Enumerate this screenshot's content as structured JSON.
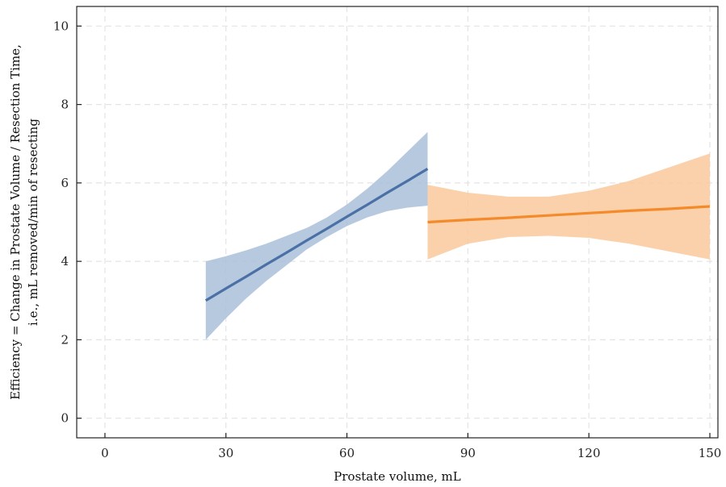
{
  "chart_data": {
    "type": "line",
    "xlabel": "Prostate volume, mL",
    "ylabel": [
      "Efficiency = Change in Prostate Volume / Resection Time,",
      "i.e., mL removed/min of resecting"
    ],
    "xlim": [
      -7,
      152
    ],
    "ylim": [
      -0.5,
      10.5
    ],
    "xticks": [
      0,
      30,
      60,
      90,
      120,
      150
    ],
    "yticks": [
      0,
      2,
      4,
      6,
      8,
      10
    ],
    "grid": true,
    "series": [
      {
        "color": "#4a70a6",
        "band_color": "#a9bfd9",
        "x": [
          25,
          30,
          35,
          40,
          45,
          50,
          55,
          60,
          65,
          70,
          75,
          80
        ],
        "y": [
          3.0,
          3.31,
          3.61,
          3.92,
          4.22,
          4.53,
          4.83,
          5.14,
          5.44,
          5.75,
          6.05,
          6.36
        ],
        "lower": [
          2.0,
          2.55,
          3.05,
          3.5,
          3.9,
          4.3,
          4.62,
          4.9,
          5.12,
          5.28,
          5.37,
          5.42
        ],
        "upper": [
          4.0,
          4.13,
          4.28,
          4.45,
          4.65,
          4.85,
          5.12,
          5.45,
          5.85,
          6.3,
          6.8,
          7.3
        ]
      },
      {
        "color": "#f58a2a",
        "band_color": "#f9c99c",
        "x": [
          80,
          90,
          100,
          110,
          120,
          130,
          140,
          150
        ],
        "y": [
          5.0,
          5.06,
          5.11,
          5.17,
          5.23,
          5.29,
          5.34,
          5.4
        ],
        "lower": [
          4.05,
          4.45,
          4.62,
          4.65,
          4.6,
          4.45,
          4.25,
          4.05
        ],
        "upper": [
          5.95,
          5.75,
          5.65,
          5.65,
          5.8,
          6.05,
          6.4,
          6.75
        ]
      }
    ]
  }
}
